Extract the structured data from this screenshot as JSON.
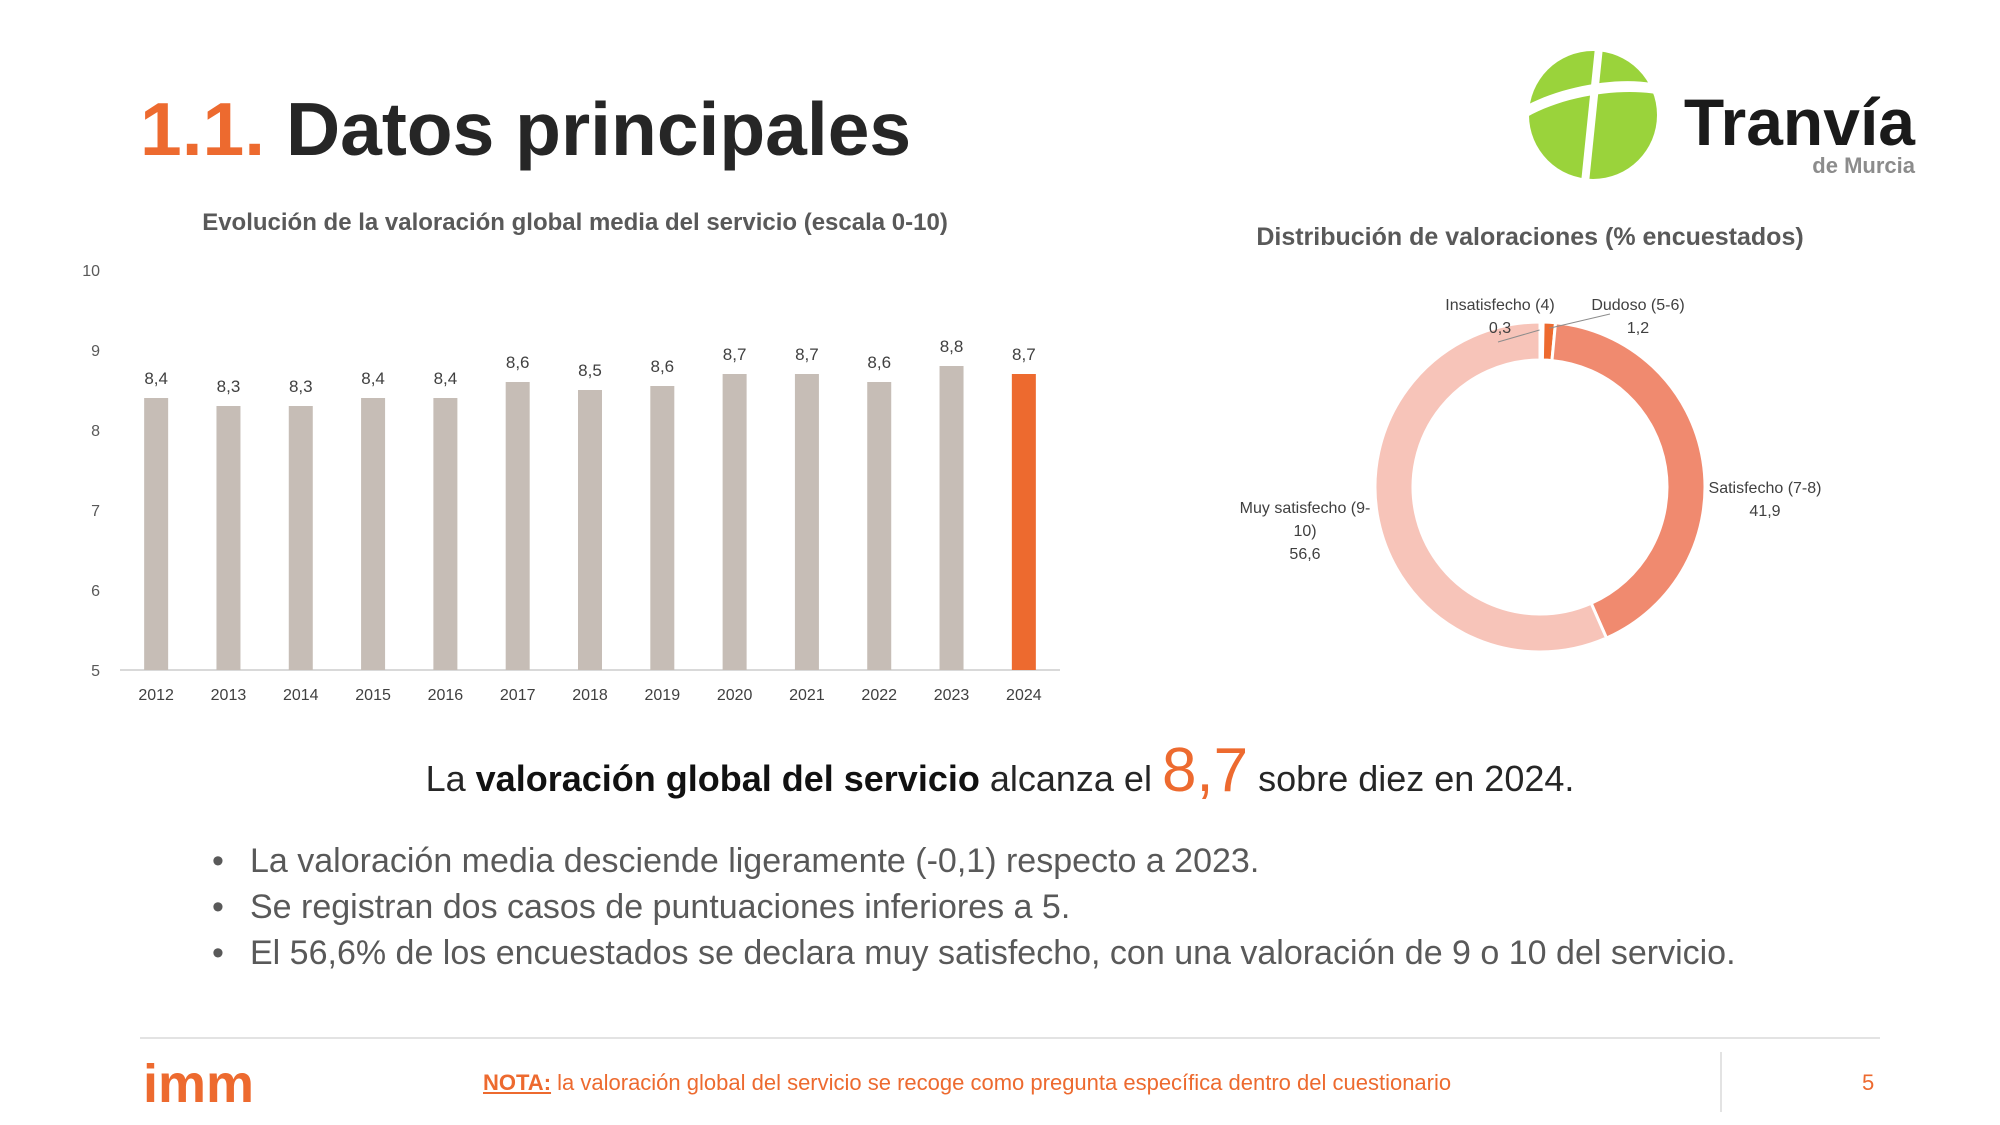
{
  "header": {
    "number": "1.1.",
    "title": "Datos principales",
    "logo_text": "Tranvía",
    "logo_subtext": "de Murcia"
  },
  "colors": {
    "accent": "#ed6a2f",
    "bar_gray": "#c6bdb6",
    "logo_green": "#9ad33b",
    "donut": [
      "#f7c4b9",
      "#f08a6f",
      "#ed6a2f",
      "#e8704c"
    ]
  },
  "chart_data": [
    {
      "type": "bar",
      "title": "Evolución de la valoración global media del servicio (escala 0-10)",
      "categories": [
        "2012",
        "2013",
        "2014",
        "2015",
        "2016",
        "2017",
        "2018",
        "2019",
        "2020",
        "2021",
        "2022",
        "2023",
        "2024"
      ],
      "values": [
        8.4,
        8.3,
        8.3,
        8.4,
        8.4,
        8.6,
        8.5,
        8.55,
        8.7,
        8.7,
        8.6,
        8.8,
        8.7
      ],
      "data_labels": [
        "8,4",
        "8,3",
        "8,3",
        "8,4",
        "8,4",
        "8,6",
        "8,5",
        "8,6",
        "8,7",
        "8,7",
        "8,6",
        "8,8",
        "8,7"
      ],
      "highlight_index": 12,
      "ylim": [
        5,
        10
      ],
      "yticks": [
        "5",
        "6",
        "7",
        "8",
        "9",
        "10"
      ],
      "grid": false,
      "xlabel": "",
      "ylabel": ""
    },
    {
      "type": "pie",
      "title": "Distribución de valoraciones (% encuestados)",
      "donut": true,
      "slices": [
        {
          "label": "Insatisfecho (4)",
          "value": 0.3,
          "value_label": "0,3"
        },
        {
          "label": "Dudoso (5-6)",
          "value": 1.2,
          "value_label": "1,2"
        },
        {
          "label": "Satisfecho (7-8)",
          "value": 41.9,
          "value_label": "41,9"
        },
        {
          "label_lines": [
            "Muy satisfecho (9-",
            "10)"
          ],
          "value": 56.6,
          "value_label": "56,6"
        }
      ]
    }
  ],
  "headline": {
    "pre": "La ",
    "strong": "valoración global del servicio",
    "mid": " alcanza el ",
    "big": "8,7",
    "post": " sobre diez en 2024."
  },
  "bullets": [
    "La valoración media desciende ligeramente (-0,1) respecto a 2023.",
    "Se registran dos casos de puntuaciones inferiores a 5.",
    "El 56,6% de los encuestados se declara muy satisfecho, con una valoración de 9 o 10 del servicio."
  ],
  "footer": {
    "logo_text": "imm",
    "note_label": "NOTA:",
    "note_text": " la valoración global del servicio se recoge como pregunta específica dentro del cuestionario",
    "page": "5"
  }
}
